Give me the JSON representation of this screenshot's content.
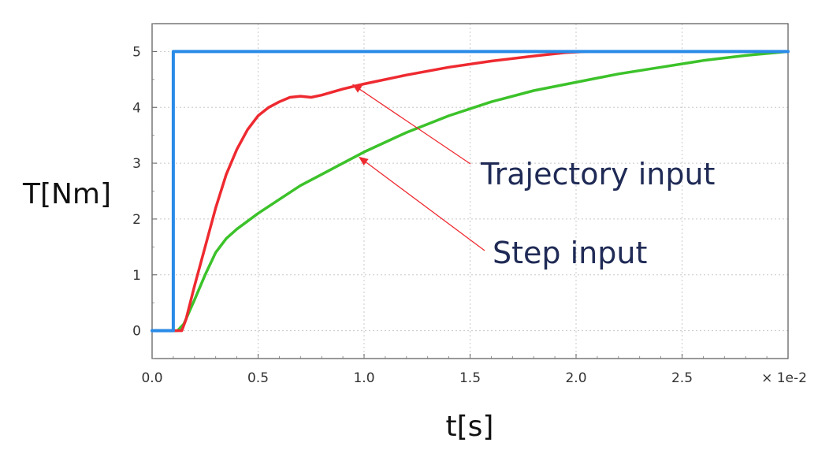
{
  "chart_data": {
    "type": "line",
    "xlabel": "t[s]",
    "ylabel": "T[Nm]",
    "x_multiplier_label": "× 1e-2",
    "xlim": [
      0,
      3.0
    ],
    "ylim": [
      -0.5,
      5.5
    ],
    "x_ticks": [
      "0.0",
      "0.5",
      "1.0",
      "1.5",
      "2.0",
      "2.5"
    ],
    "x_tick_values": [
      0,
      0.5,
      1.0,
      1.5,
      2.0,
      2.5
    ],
    "y_ticks": [
      "0",
      "1",
      "2",
      "3",
      "4",
      "5"
    ],
    "y_tick_values": [
      0,
      1,
      2,
      3,
      4,
      5
    ],
    "grid": true,
    "series": [
      {
        "color": "#2a8be8",
        "points": [
          [
            0,
            0
          ],
          [
            0.1,
            0
          ],
          [
            0.1,
            5
          ],
          [
            3.0,
            5
          ]
        ]
      },
      {
        "color": "#ee2a30",
        "points": [
          [
            0,
            0
          ],
          [
            0.14,
            0
          ],
          [
            0.16,
            0.2
          ],
          [
            0.2,
            0.8
          ],
          [
            0.25,
            1.5
          ],
          [
            0.3,
            2.2
          ],
          [
            0.35,
            2.8
          ],
          [
            0.4,
            3.25
          ],
          [
            0.45,
            3.6
          ],
          [
            0.5,
            3.85
          ],
          [
            0.55,
            4.0
          ],
          [
            0.6,
            4.1
          ],
          [
            0.65,
            4.18
          ],
          [
            0.7,
            4.2
          ],
          [
            0.75,
            4.18
          ],
          [
            0.8,
            4.22
          ],
          [
            0.9,
            4.33
          ],
          [
            1.0,
            4.42
          ],
          [
            1.2,
            4.58
          ],
          [
            1.4,
            4.72
          ],
          [
            1.6,
            4.83
          ],
          [
            1.8,
            4.92
          ],
          [
            1.95,
            4.98
          ],
          [
            2.05,
            5.0
          ],
          [
            3.0,
            5.0
          ]
        ]
      },
      {
        "color": "#3cc22a",
        "points": [
          [
            0,
            0
          ],
          [
            0.12,
            0
          ],
          [
            0.15,
            0.12
          ],
          [
            0.2,
            0.55
          ],
          [
            0.25,
            1.0
          ],
          [
            0.3,
            1.4
          ],
          [
            0.35,
            1.65
          ],
          [
            0.4,
            1.82
          ],
          [
            0.5,
            2.1
          ],
          [
            0.6,
            2.35
          ],
          [
            0.7,
            2.6
          ],
          [
            0.8,
            2.8
          ],
          [
            0.9,
            3.0
          ],
          [
            1.0,
            3.2
          ],
          [
            1.2,
            3.55
          ],
          [
            1.4,
            3.85
          ],
          [
            1.6,
            4.1
          ],
          [
            1.8,
            4.3
          ],
          [
            2.0,
            4.45
          ],
          [
            2.2,
            4.6
          ],
          [
            2.4,
            4.72
          ],
          [
            2.6,
            4.84
          ],
          [
            2.8,
            4.93
          ],
          [
            3.0,
            5.0
          ]
        ]
      }
    ],
    "annotations": [
      {
        "text": "Trajectory input",
        "color": "#ee2a30",
        "arrow_to": [
          0.95,
          4.4
        ]
      },
      {
        "text": "Step input",
        "color": "#ee2a30",
        "arrow_to": [
          0.98,
          3.1
        ]
      }
    ]
  }
}
